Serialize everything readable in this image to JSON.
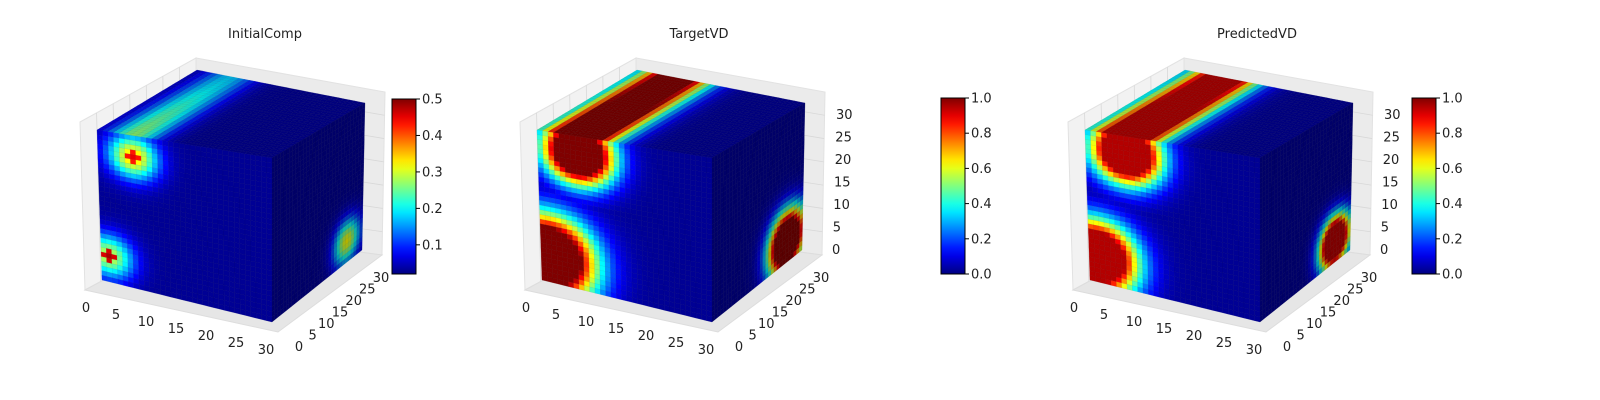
{
  "chart_data": [
    {
      "type": "voxel-3d",
      "title": "InitialComp",
      "grid_size": 32,
      "x_ticks": [
        0,
        5,
        10,
        15,
        20,
        25,
        30
      ],
      "y_ticks": [
        0,
        5,
        10,
        15,
        20,
        25,
        30
      ],
      "z_ticks": [],
      "colorbar": {
        "colormap": "jet",
        "range": [
          0.02,
          0.5
        ],
        "ticks": [
          "0.1",
          "0.2",
          "0.3",
          "0.4",
          "0.5"
        ]
      },
      "blobs": [
        {
          "face": "front",
          "u": 6,
          "v": 27,
          "radius": 5,
          "value": 0.35,
          "peak_value": 0.45
        },
        {
          "face": "front",
          "u": 1,
          "v": 5,
          "radius": 5,
          "value": 0.3,
          "peak_value": 0.48
        },
        {
          "face": "side",
          "u": 26,
          "v": 4,
          "radius": 5,
          "value": 0.32
        }
      ]
    },
    {
      "type": "voxel-3d",
      "title": "TargetVD",
      "grid_size": 32,
      "x_ticks": [
        0,
        5,
        10,
        15,
        20,
        25,
        30
      ],
      "y_ticks": [
        0,
        5,
        10,
        15,
        20,
        25,
        30
      ],
      "z_ticks": [
        0,
        5,
        10,
        15,
        20,
        25,
        30
      ],
      "colorbar": {
        "colormap": "jet",
        "range": [
          0.0,
          1.0
        ],
        "ticks": [
          "0.0",
          "0.2",
          "0.4",
          "0.6",
          "0.8",
          "1.0"
        ]
      },
      "blobs": [
        {
          "face": "front",
          "u": 7,
          "v": 28,
          "radius": 6,
          "value": 1.0
        },
        {
          "face": "front",
          "u": 1,
          "v": 5,
          "radius": 8,
          "value": 1.0
        },
        {
          "face": "side",
          "u": 26,
          "v": 4,
          "radius": 6,
          "value": 1.0
        }
      ]
    },
    {
      "type": "voxel-3d",
      "title": "PredictedVD",
      "grid_size": 32,
      "x_ticks": [
        0,
        5,
        10,
        15,
        20,
        25,
        30
      ],
      "y_ticks": [
        0,
        5,
        10,
        15,
        20,
        25,
        30
      ],
      "z_ticks": [
        0,
        5,
        10,
        15,
        20,
        25,
        30
      ],
      "colorbar": {
        "colormap": "jet",
        "range": [
          0.0,
          1.0
        ],
        "ticks": [
          "0.0",
          "0.2",
          "0.4",
          "0.6",
          "0.8",
          "1.0"
        ]
      },
      "blobs": [
        {
          "face": "front",
          "u": 7,
          "v": 28,
          "radius": 6,
          "value": 0.95
        },
        {
          "face": "front",
          "u": 1,
          "v": 5,
          "radius": 7,
          "value": 0.95
        },
        {
          "face": "side",
          "u": 26,
          "v": 4,
          "radius": 5,
          "value": 0.95
        }
      ]
    }
  ]
}
